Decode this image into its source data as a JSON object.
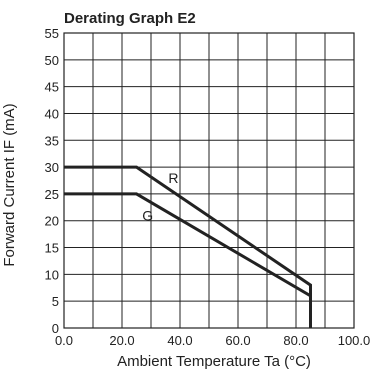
{
  "chart_data": {
    "type": "line",
    "title": "Derating Graph E2",
    "xlabel": "Ambient Temperature Ta (°C)",
    "ylabel": "Forward Current IF (mA)",
    "xlim": [
      0,
      100
    ],
    "ylim": [
      0,
      55
    ],
    "xticks": [
      0,
      20,
      40,
      60,
      80,
      100
    ],
    "xtick_labels": [
      "0.0",
      "20.0",
      "40.0",
      "60.0",
      "80.0",
      "100.0"
    ],
    "yticks": [
      0,
      5,
      10,
      15,
      20,
      25,
      30,
      35,
      40,
      45,
      50,
      55
    ],
    "ytick_labels": [
      "0",
      "5",
      "10",
      "15",
      "20",
      "25",
      "30",
      "35",
      "40",
      "45",
      "50",
      "55"
    ],
    "grid": true,
    "series": [
      {
        "name": "R",
        "x": [
          0,
          25,
          85,
          85
        ],
        "y": [
          30,
          30,
          8,
          0
        ]
      },
      {
        "name": "G",
        "x": [
          0,
          25,
          85,
          85
        ],
        "y": [
          25,
          25,
          6,
          0
        ]
      }
    ],
    "series_label_positions": [
      {
        "name": "R",
        "x": 36,
        "y": 27
      },
      {
        "name": "G",
        "x": 27,
        "y": 20
      }
    ],
    "colors": {
      "line": "#222222",
      "grid": "#222222"
    }
  }
}
